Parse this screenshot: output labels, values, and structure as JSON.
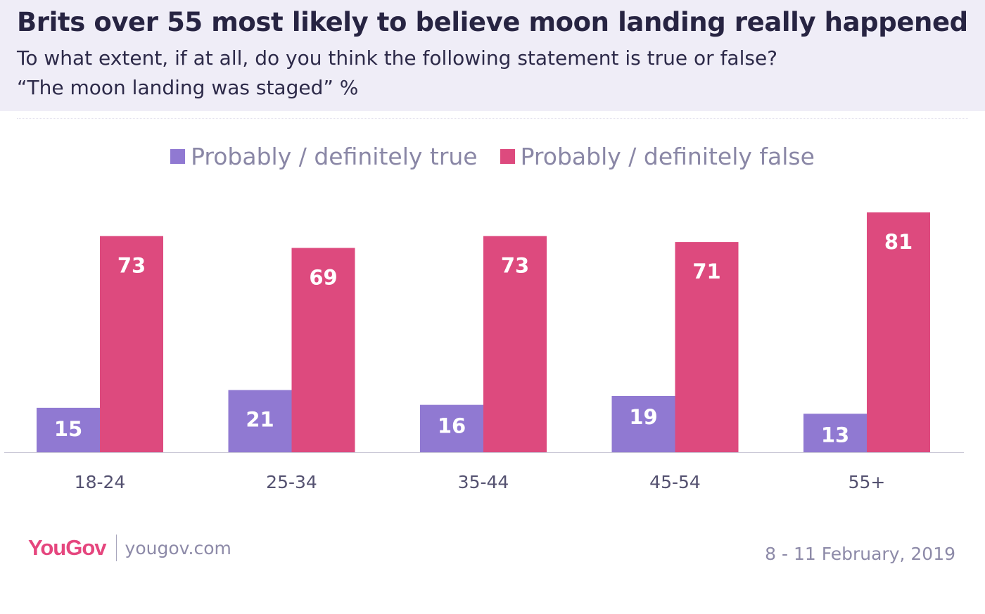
{
  "header": {
    "title": "Brits over 55 most likely to believe moon landing really happened",
    "subtitle_line1": "To what extent, if at all, do you think the following statement is true or false?",
    "subtitle_line2": "“The moon landing was staged”  %"
  },
  "legend": {
    "true_label": "Probably / definitely true",
    "false_label": "Probably / definitely false"
  },
  "colors": {
    "true": "#9079d2",
    "false": "#dd4a7e",
    "header_bg": "#efedf7",
    "brand": "#e5467e"
  },
  "chart_data": {
    "type": "bar",
    "categories": [
      "18-24",
      "25-34",
      "35-44",
      "45-54",
      "55+"
    ],
    "series": [
      {
        "name": "Probably / definitely true",
        "values": [
          15,
          21,
          16,
          19,
          13
        ]
      },
      {
        "name": "Probably / definitely false",
        "values": [
          73,
          69,
          73,
          71,
          81
        ]
      }
    ],
    "ylim": [
      0,
      81
    ],
    "grid": false,
    "legend_position": "top-center",
    "data_labels": true
  },
  "footer": {
    "logo": "YouGov",
    "url": "yougov.com",
    "date": "8 - 11 February, 2019"
  }
}
